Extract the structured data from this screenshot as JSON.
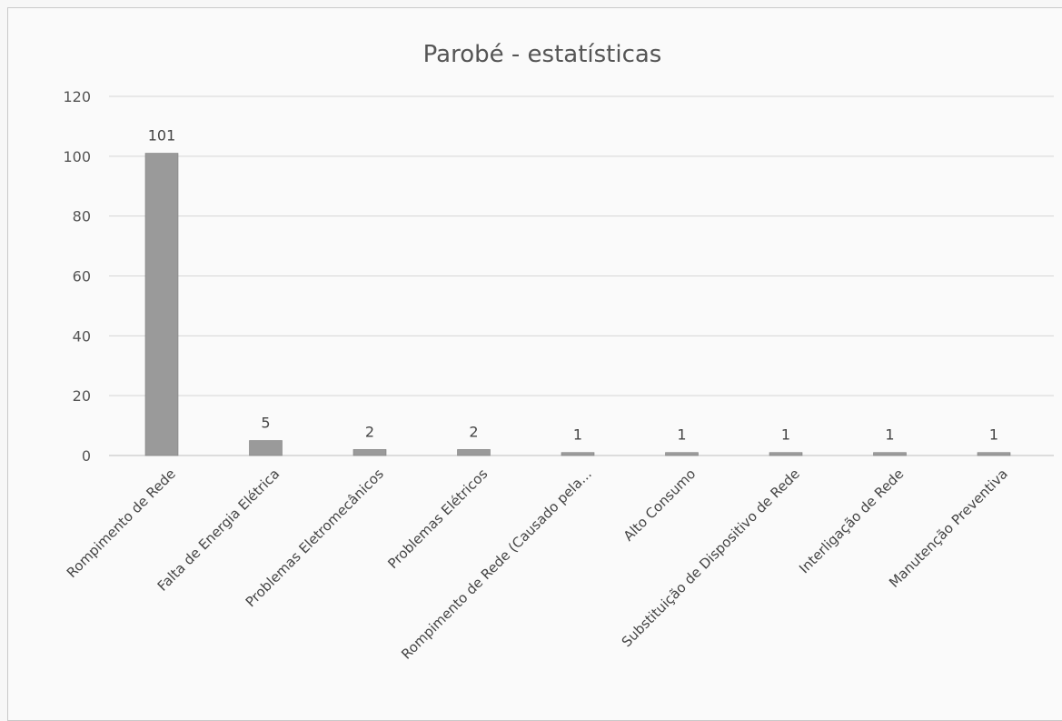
{
  "chart_data": {
    "type": "bar",
    "title": "Parobé - estatísticas",
    "xlabel": "",
    "ylabel": "",
    "ylim": [
      0,
      120
    ],
    "yticks": [
      0,
      20,
      40,
      60,
      80,
      100,
      120
    ],
    "grid": true,
    "legend": "none",
    "bar_color": "#9a9a9a",
    "categories": [
      "Rompimento de Rede",
      "Falta de Energia Elétrica",
      "Problemas Eletromecânicos",
      "Problemas Elétricos",
      "Rompimento de Rede (Causado pela...",
      "Alto Consumo",
      "Substituição de Dispositivo de Rede",
      "Interligação de Rede",
      "Manutenção Preventiva"
    ],
    "values": [
      101,
      5,
      2,
      2,
      1,
      1,
      1,
      1,
      1
    ]
  }
}
